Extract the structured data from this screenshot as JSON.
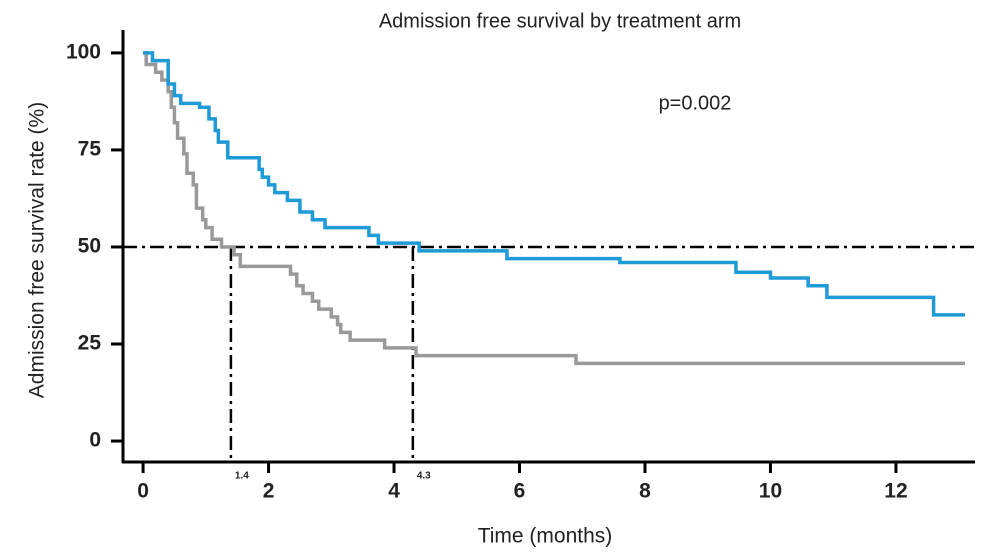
{
  "chart_data": {
    "type": "step",
    "title": "Admission free survival by treatment arm",
    "xlabel": "Time (months)",
    "ylabel": "Admission free survival rate (%)",
    "annotation": "p=0.002",
    "xlim": [
      -0.32,
      13.26
    ],
    "ylim": [
      -5.4,
      105.9
    ],
    "xticks": [
      0,
      2,
      4,
      6,
      8,
      10,
      12
    ],
    "yticks": [
      0,
      25,
      50,
      75,
      100
    ],
    "reference_y": 50,
    "medians": [
      1.4,
      4.3
    ],
    "series": [
      {
        "color": "#1e9ad6",
        "x": [
          0,
          0.15,
          0.4,
          0.5,
          0.6,
          0.9,
          1.05,
          1.15,
          1.2,
          1.35,
          1.85,
          1.9,
          2.0,
          2.1,
          2.3,
          2.5,
          2.7,
          2.9,
          2.95,
          3.6,
          3.75,
          4.4,
          5.8,
          7.6,
          9.45,
          10.0,
          10.6,
          10.9,
          12.6,
          13.1
        ],
        "values": [
          100,
          98,
          92,
          89,
          87,
          86,
          83,
          80,
          77,
          73,
          70,
          68,
          66,
          64,
          62,
          59,
          57,
          55,
          55,
          53,
          51,
          49,
          47,
          46,
          43.5,
          42,
          40,
          37,
          32.5,
          32.5
        ]
      },
      {
        "color": "#999999",
        "x": [
          0,
          0.05,
          0.2,
          0.3,
          0.4,
          0.45,
          0.5,
          0.55,
          0.65,
          0.7,
          0.8,
          0.85,
          0.95,
          1.0,
          1.1,
          1.25,
          1.45,
          1.55,
          2.35,
          2.45,
          2.55,
          2.7,
          2.8,
          3.0,
          3.1,
          3.15,
          3.3,
          3.85,
          4.35,
          6.9,
          13.1
        ],
        "values": [
          100,
          97,
          95,
          93,
          90,
          86,
          82,
          78,
          74,
          69,
          66,
          60,
          57,
          55,
          52,
          50,
          48,
          45,
          43,
          40,
          38,
          36,
          34,
          32,
          30,
          28,
          26,
          24,
          22,
          20,
          20
        ]
      }
    ]
  }
}
